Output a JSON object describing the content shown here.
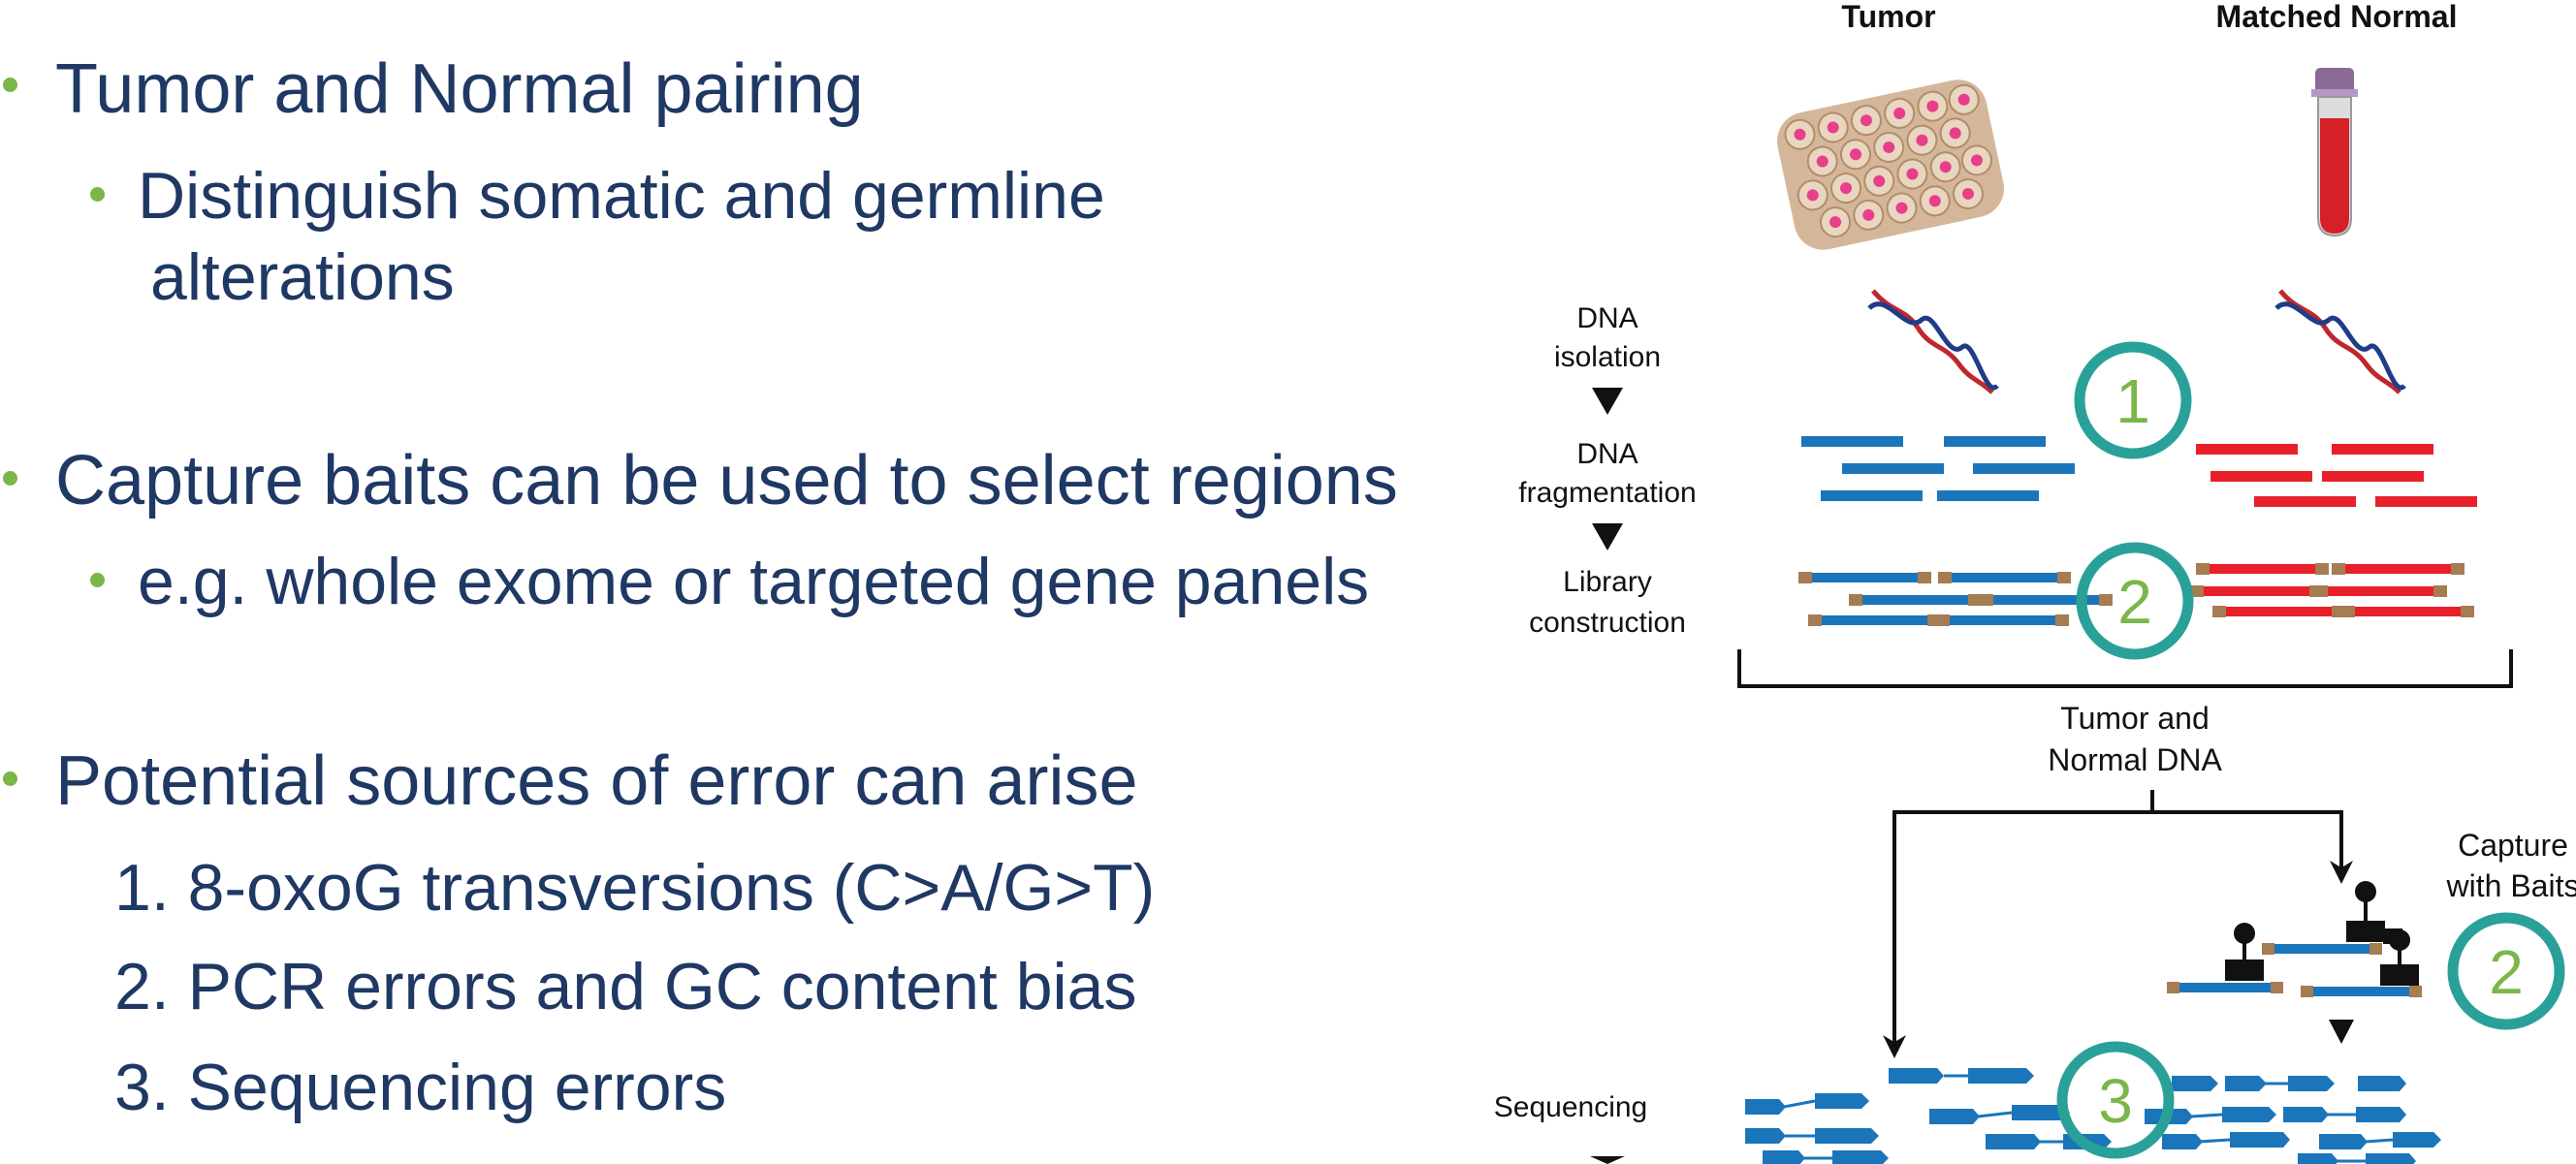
{
  "bullets": [
    {
      "text": "Tumor and Normal pairing",
      "sub": [
        "Distinguish somatic and germline",
        "alterations"
      ]
    },
    {
      "text": "Capture baits can be used to select regions",
      "sub": [
        "e.g. whole exome or targeted gene panels"
      ]
    },
    {
      "text": "Potential sources of error can arise",
      "numbered": [
        "1. 8-oxoG transversions (C>A/G>T)",
        "2. PCR errors and GC content bias",
        "3. Sequencing errors"
      ]
    }
  ],
  "diagram": {
    "tumor_label": "Tumor",
    "normal_label": "Matched Normal",
    "steps": {
      "dna_isolation": [
        "DNA",
        "isolation"
      ],
      "dna_fragmentation": [
        "DNA",
        "fragmentation"
      ],
      "library_construction": [
        "Library",
        "construction"
      ],
      "sequencing": "Sequencing"
    },
    "merge_label": [
      "Tumor and",
      "Normal DNA"
    ],
    "capture_label": [
      "Capture",
      "with Baits"
    ],
    "markers": [
      "1",
      "2",
      "2",
      "3"
    ],
    "colors": {
      "text_bullet": "#1f3864",
      "bullet_dot": "#7ab648",
      "tumor_fragment": "#1b75bb",
      "normal_fragment": "#e8202a",
      "adapter": "#a67c52",
      "circle_ring": "#2aa198",
      "circle_number": "#7ab648"
    }
  }
}
